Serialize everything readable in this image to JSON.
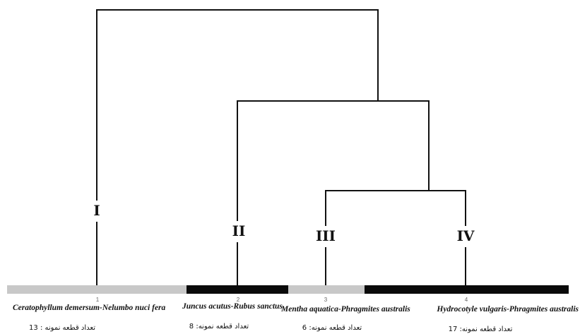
{
  "dendrogram": {
    "groups": [
      {
        "roman": "I",
        "number": "1",
        "species": "Ceratophyllum demersum-Nelumbo nuci fera",
        "count_text": "تعداد قطعه نمونه : 13"
      },
      {
        "roman": "II",
        "number": "2",
        "species": "Juncus acutus-Rubus sanctus",
        "count_text": "تعداد قطعه نمونه: 8"
      },
      {
        "roman": "III",
        "number": "3",
        "species": "Mentha aquatica-Phragmites australis",
        "count_text": "تعداد قطعه نمونه: 6"
      },
      {
        "roman": "IV",
        "number": "4",
        "species": "Hydrocotyle vulgaris-Phragmites australis",
        "count_text": "تعداد قطعه نمونه: 17"
      }
    ],
    "bar_colors": [
      "#c8c8c8",
      "#0a0a0a",
      "#c8c8c8",
      "#0a0a0a"
    ],
    "line_color": "#111111"
  }
}
